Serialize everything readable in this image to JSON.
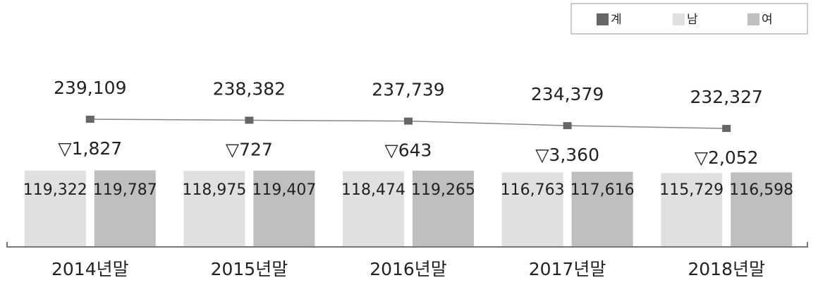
{
  "chart_data": {
    "type": "bar",
    "categories": [
      "2014년말",
      "2015년말",
      "2016년말",
      "2017년말",
      "2018년말"
    ],
    "series": [
      {
        "name": "계",
        "type": "line",
        "axis": "y2",
        "color": "#666666",
        "values": [
          239109,
          238382,
          237739,
          234379,
          232327
        ],
        "value_labels": [
          "239,109",
          "238,382",
          "237,739",
          "234,379",
          "232,327"
        ]
      },
      {
        "name": "남",
        "color": "#e0e0e0",
        "values": [
          119322,
          118975,
          118474,
          116763,
          115729
        ],
        "value_labels": [
          "119,322",
          "118,975",
          "118,474",
          "116,763",
          "115,729"
        ]
      },
      {
        "name": "여",
        "color": "#bfbfbf",
        "values": [
          119787,
          119407,
          119265,
          117616,
          116598
        ],
        "value_labels": [
          "119,787",
          "119,407",
          "119,265",
          "117,616",
          "116,598"
        ]
      }
    ],
    "annotations": [
      "▽1,827",
      "▽727",
      "▽643",
      "▽3,360",
      "▽2,052"
    ],
    "ylim": [
      0,
      276000
    ],
    "y2lim": [
      145000,
      275000
    ],
    "legend": "top-right"
  }
}
